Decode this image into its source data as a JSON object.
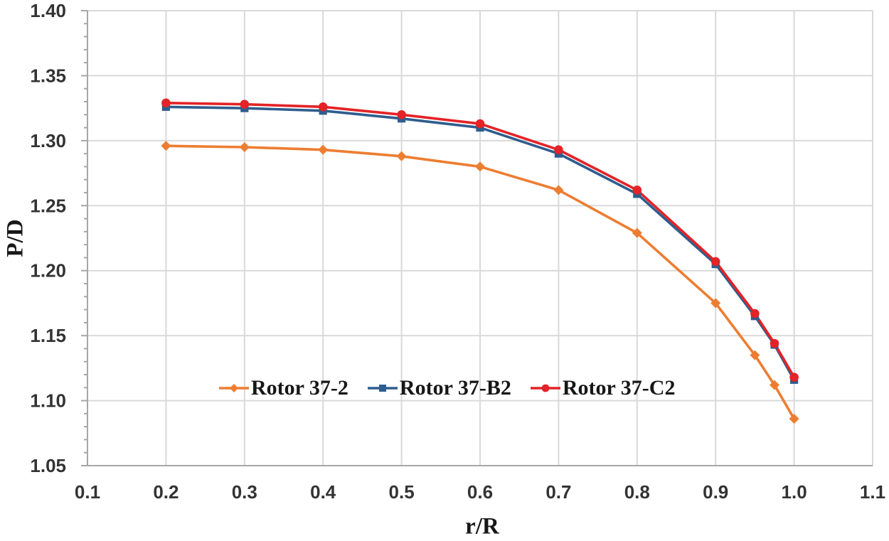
{
  "page": {
    "background": "#ffffff",
    "tick_label_color": "#333333",
    "grid_color": "#d9d9d9",
    "axis_color": "#a6a6a6"
  },
  "chart_data": {
    "type": "line",
    "title": "",
    "xlabel": "r/R",
    "ylabel": "P/D",
    "xlim": [
      0.1,
      1.1
    ],
    "ylim": [
      1.05,
      1.4
    ],
    "grid": true,
    "x_tick_labels": [
      "0.1",
      "0.2",
      "0.3",
      "0.4",
      "0.5",
      "0.6",
      "0.7",
      "0.8",
      "0.9",
      "1.0",
      "1.1"
    ],
    "y_tick_labels": [
      "1.05",
      "1.10",
      "1.15",
      "1.20",
      "1.25",
      "1.30",
      "1.35",
      "1.40"
    ],
    "y_minor_tick_step": 0.01,
    "legend_position": "inside-bottom-center",
    "x": [
      0.2,
      0.3,
      0.4,
      0.5,
      0.6,
      0.7,
      0.8,
      0.9,
      0.95,
      0.975,
      1.0
    ],
    "series": [
      {
        "name": "Rotor 37-2",
        "color": "#ED7D31",
        "marker": "diamond",
        "values": [
          1.296,
          1.295,
          1.293,
          1.288,
          1.28,
          1.262,
          1.229,
          1.175,
          1.135,
          1.112,
          1.086
        ]
      },
      {
        "name": "Rotor 37-B2",
        "color": "#2E5D8E",
        "marker": "square",
        "values": [
          1.326,
          1.325,
          1.323,
          1.317,
          1.31,
          1.29,
          1.259,
          1.205,
          1.165,
          1.143,
          1.116
        ]
      },
      {
        "name": "Rotor 37-C2",
        "color": "#E32327",
        "marker": "circle",
        "values": [
          1.329,
          1.328,
          1.326,
          1.32,
          1.313,
          1.293,
          1.262,
          1.207,
          1.167,
          1.144,
          1.118
        ]
      }
    ]
  }
}
